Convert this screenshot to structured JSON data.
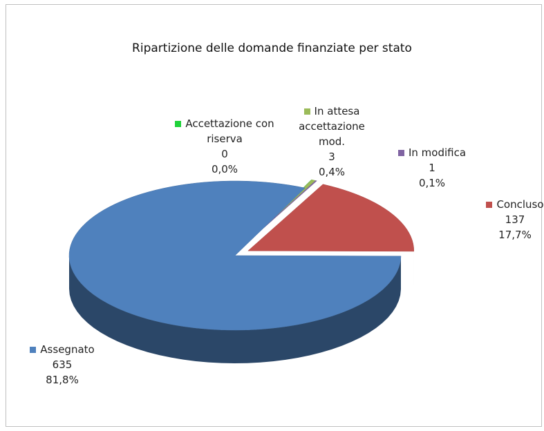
{
  "chart_data": {
    "type": "pie3d",
    "title": "Ripartizione delle domande finanziate per stato",
    "categories": [
      "Accettazione con riserva",
      "In attesa accettazione mod.",
      "In modifica",
      "Concluso",
      "Assegnato"
    ],
    "values": [
      0,
      3,
      1,
      137,
      635
    ],
    "percent_labels": [
      "0,0%",
      "0,4%",
      "0,1%",
      "17,7%",
      "81,8%"
    ],
    "colors": [
      "#1fd23a",
      "#9bbb59",
      "#8064a2",
      "#c0504d",
      "#4f81bd"
    ]
  }
}
